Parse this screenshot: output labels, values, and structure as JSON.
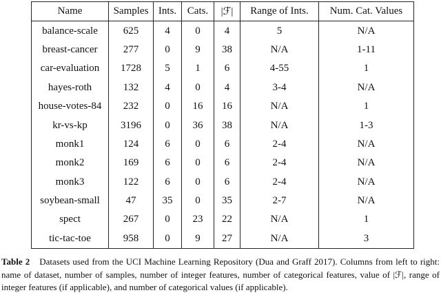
{
  "table": {
    "header": [
      "Name",
      "Samples",
      "Ints.",
      "Cats.",
      "|ℱ|",
      "Range of Ints.",
      "Num. Cat. Values"
    ],
    "rows": [
      [
        "balance-scale",
        "625",
        "4",
        "0",
        "4",
        "5",
        "N/A"
      ],
      [
        "breast-cancer",
        "277",
        "0",
        "9",
        "38",
        "N/A",
        "1-11"
      ],
      [
        "car-evaluation",
        "1728",
        "5",
        "1",
        "6",
        "4-55",
        "1"
      ],
      [
        "hayes-roth",
        "132",
        "4",
        "0",
        "4",
        "3-4",
        "N/A"
      ],
      [
        "house-votes-84",
        "232",
        "0",
        "16",
        "16",
        "N/A",
        "1"
      ],
      [
        "kr-vs-kp",
        "3196",
        "0",
        "36",
        "38",
        "N/A",
        "1-3"
      ],
      [
        "monk1",
        "124",
        "6",
        "0",
        "6",
        "2-4",
        "N/A"
      ],
      [
        "monk2",
        "169",
        "6",
        "0",
        "6",
        "2-4",
        "N/A"
      ],
      [
        "monk3",
        "122",
        "6",
        "0",
        "6",
        "2-4",
        "N/A"
      ],
      [
        "soybean-small",
        "47",
        "35",
        "0",
        "35",
        "2-7",
        "N/A"
      ],
      [
        "spect",
        "267",
        "0",
        "23",
        "22",
        "N/A",
        "1"
      ],
      [
        "tic-tac-toe",
        "958",
        "0",
        "9",
        "27",
        "N/A",
        "3"
      ]
    ]
  },
  "caption": {
    "label": "Table 2",
    "text": "Datasets used from the UCI Machine Learning Repository (Dua and Graff 2017). Columns from left to right: name of dataset, number of samples, number of integer features, number of categorical features, value of |ℱ|, range of integer features (if applicable), and number of categorical values (if applicable)."
  }
}
